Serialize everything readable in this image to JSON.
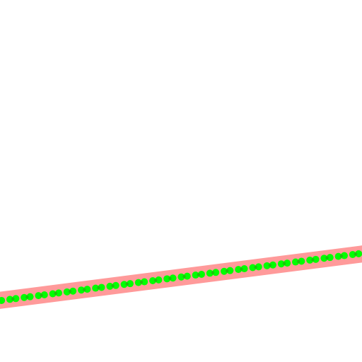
{
  "scene": {
    "background_color": "#ffffff",
    "band_color": "#ff9a9a",
    "dot_color": "#00ff00",
    "dot_dark_color": "#3a8a1a"
  }
}
